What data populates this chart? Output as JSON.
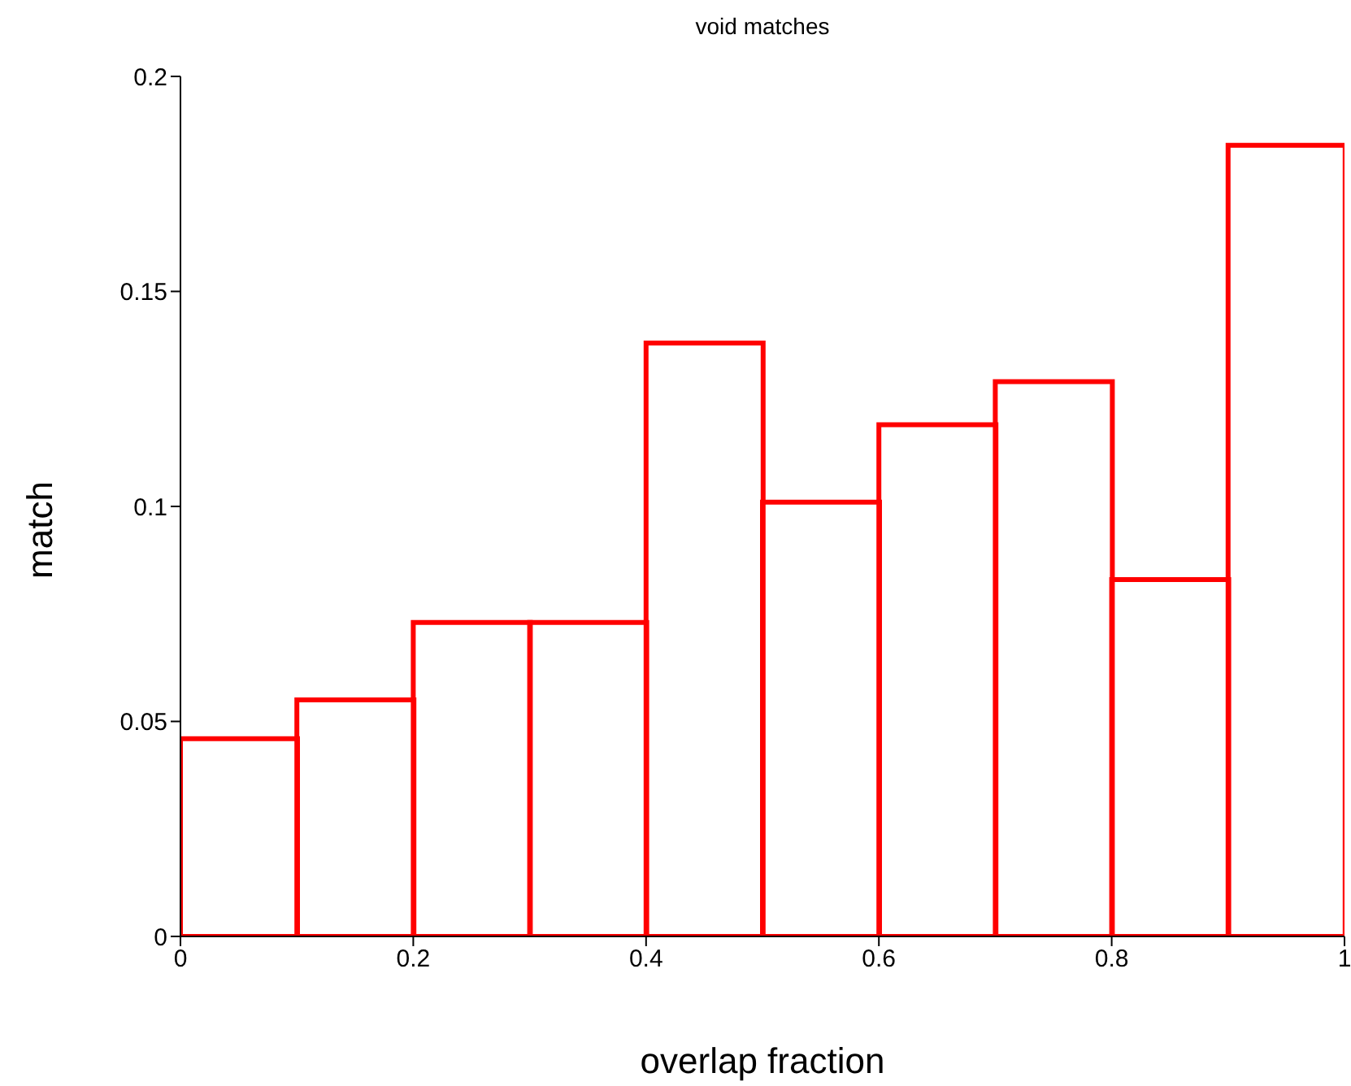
{
  "chart_data": {
    "type": "histogram",
    "title": "void matches",
    "xlabel": "overlap fraction",
    "ylabel": "match",
    "bins": [
      0,
      0.1,
      0.2,
      0.3,
      0.4,
      0.5,
      0.6,
      0.7,
      0.8,
      0.9,
      1
    ],
    "values": [
      0.046,
      0.055,
      0.073,
      0.073,
      0.138,
      0.101,
      0.119,
      0.129,
      0.083,
      0.184
    ],
    "color": "#ff0000",
    "xlim": [
      0,
      1
    ],
    "xticks": [
      0,
      0.2,
      0.4,
      0.6,
      0.8,
      1
    ],
    "ylim": [
      0,
      0.2
    ],
    "yticks": [
      0,
      0.05,
      0.1,
      0.15,
      0.2
    ]
  }
}
